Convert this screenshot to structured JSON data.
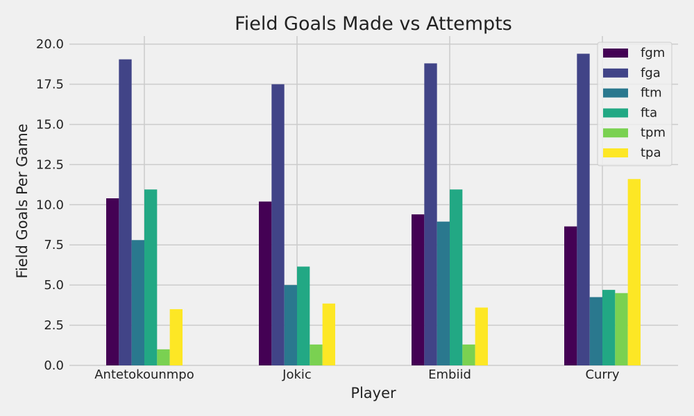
{
  "chart_data": {
    "type": "bar",
    "title": "Field Goals Made vs Attempts",
    "xlabel": "Player",
    "ylabel": "Field Goals Per Game",
    "categories": [
      "Antetokounmpo",
      "Jokic",
      "Embiid",
      "Curry"
    ],
    "series": [
      {
        "name": "fgm",
        "values": [
          10.4,
          10.2,
          9.4,
          8.65
        ],
        "color": "#440154"
      },
      {
        "name": "fga",
        "values": [
          19.05,
          17.5,
          18.8,
          19.4
        ],
        "color": "#414487"
      },
      {
        "name": "ftm",
        "values": [
          7.8,
          5.0,
          8.95,
          4.25
        ],
        "color": "#2a788e"
      },
      {
        "name": "fta",
        "values": [
          10.95,
          6.15,
          10.95,
          4.7
        ],
        "color": "#22a884"
      },
      {
        "name": "tpm",
        "values": [
          1.0,
          1.3,
          1.3,
          4.5
        ],
        "color": "#7ad151"
      },
      {
        "name": "tpa",
        "values": [
          3.5,
          3.85,
          3.6,
          11.6
        ],
        "color": "#fde725"
      }
    ],
    "ylim": [
      0,
      20.5
    ],
    "yticks": [
      0.0,
      2.5,
      5.0,
      7.5,
      10.0,
      12.5,
      15.0,
      17.5,
      20.0
    ],
    "ytick_labels": [
      "0.0",
      "2.5",
      "5.0",
      "7.5",
      "10.0",
      "12.5",
      "15.0",
      "17.5",
      "20.0"
    ],
    "grid": true,
    "legend": "top-right"
  }
}
